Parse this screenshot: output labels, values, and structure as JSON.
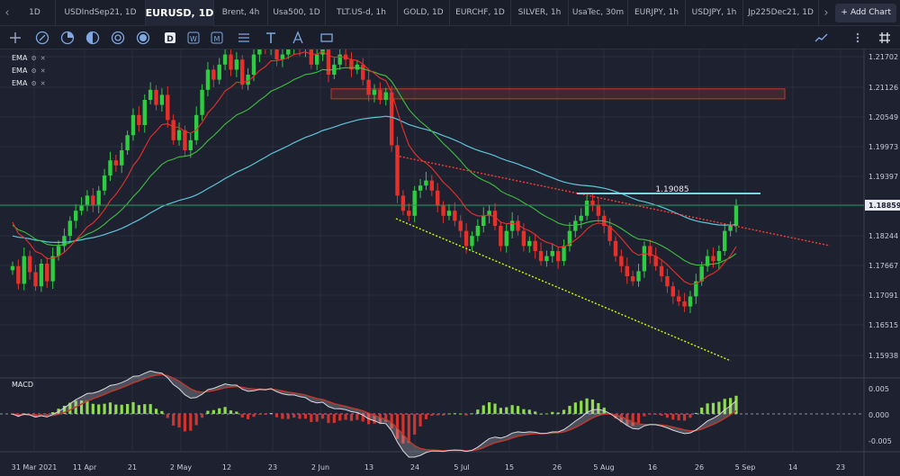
{
  "tabs": [
    {
      "label": "1D"
    },
    {
      "label": "USDIndSep21, 1D"
    },
    {
      "label": "EURUSD, 1D"
    },
    {
      "label": "Brent, 4h"
    },
    {
      "label": "Usa500, 1D"
    },
    {
      "label": "TLT.US-d, 1h"
    },
    {
      "label": "GOLD, 1D"
    },
    {
      "label": "EURCHF, 1D"
    },
    {
      "label": "SILVER, 1h"
    },
    {
      "label": "UsaTec, 30m"
    },
    {
      "label": "EURJPY, 1h"
    },
    {
      "label": "USDJPY, 1h"
    },
    {
      "label": "Jp225Dec21, 1D"
    }
  ],
  "active_tab": 2,
  "add_chart_label": "Add Chart",
  "toolbar_icons": [
    "crosshair-icon",
    "line-tool-icon",
    "fib-tool-icon",
    "pattern-tool-icon",
    "circle-tool-icon",
    "shape-tool-icon",
    "daily-d-icon",
    "weekly-w-icon",
    "monthly-m-icon",
    "gann-tool-icon",
    "text-tool-icon",
    "arrow-tool-icon",
    "rectangle-tool-icon",
    "indicator-icon",
    "more-icon",
    "grid-icon"
  ],
  "indicators": [
    {
      "label": "EMA"
    },
    {
      "label": "EMA"
    },
    {
      "label": "EMA"
    }
  ],
  "macd_label": "MACD",
  "colors": {
    "up": "#2ecc40",
    "down": "#e8302a",
    "ema_fast": "#e8302a",
    "ema_mid": "#3fbf3f",
    "ema_slow": "#5ec4d8",
    "resistance": "#c0392b",
    "trend_up": "#c6ff00",
    "trend_down": "#ff3b30",
    "price_line": "#2b8f5a"
  },
  "chart_data": {
    "type": "candlestick",
    "symbol": "EURUSD, 1D",
    "y_ticks": [
      "1.21702",
      "1.21126",
      "1.20549",
      "1.19973",
      "1.19397",
      "1.18824",
      "1.18244",
      "1.17667",
      "1.17091",
      "1.16515",
      "1.15938"
    ],
    "y_range": [
      1.154,
      1.219
    ],
    "current_price": "1.18859",
    "annotation": "1.19085",
    "resistance_zone": [
      1.2101,
      1.211
    ],
    "x_labels": [
      "31 Mar 2021",
      "11 Apr",
      "21",
      "2 May",
      "12",
      "23",
      "2 Jun",
      "13",
      "24",
      "5 Jul",
      "15",
      "26",
      "5 Aug",
      "16",
      "26",
      "5 Sep",
      "14",
      "23"
    ],
    "macd_ticks": [
      "0.005",
      "0.000",
      "-0.005"
    ],
    "macd_range": [
      -0.0065,
      0.0062
    ],
    "closes": [
      1.176,
      1.1725,
      1.178,
      1.1748,
      1.172,
      1.1765,
      1.173,
      1.178,
      1.18,
      1.182,
      1.185,
      1.187,
      1.188,
      1.19,
      1.188,
      1.191,
      1.194,
      1.197,
      1.196,
      1.199,
      1.202,
      1.206,
      1.204,
      1.209,
      1.211,
      1.208,
      1.21,
      1.205,
      1.201,
      1.203,
      1.199,
      1.201,
      1.206,
      1.211,
      1.215,
      1.213,
      1.216,
      1.218,
      1.215,
      1.217,
      1.212,
      1.214,
      1.218,
      1.22,
      1.219,
      1.222,
      1.217,
      1.218,
      1.219,
      1.221,
      1.219,
      1.22,
      1.216,
      1.218,
      1.221,
      1.214,
      1.216,
      1.218,
      1.217,
      1.215,
      1.216,
      1.213,
      1.21,
      1.211,
      1.209,
      1.2105,
      1.2,
      1.19,
      1.187,
      1.186,
      1.191,
      1.192,
      1.193,
      1.191,
      1.188,
      1.186,
      1.187,
      1.185,
      1.183,
      1.18,
      1.182,
      1.184,
      1.186,
      1.187,
      1.184,
      1.18,
      1.183,
      1.185,
      1.183,
      1.18,
      1.181,
      1.179,
      1.177,
      1.178,
      1.179,
      1.177,
      1.18,
      1.183,
      1.185,
      1.186,
      1.189,
      1.188,
      1.186,
      1.184,
      1.181,
      1.178,
      1.176,
      1.174,
      1.173,
      1.175,
      1.18,
      1.178,
      1.176,
      1.174,
      1.172,
      1.17,
      1.169,
      1.168,
      1.17,
      1.173,
      1.176,
      1.178,
      1.177,
      1.179,
      1.183,
      1.184,
      1.188
    ]
  }
}
